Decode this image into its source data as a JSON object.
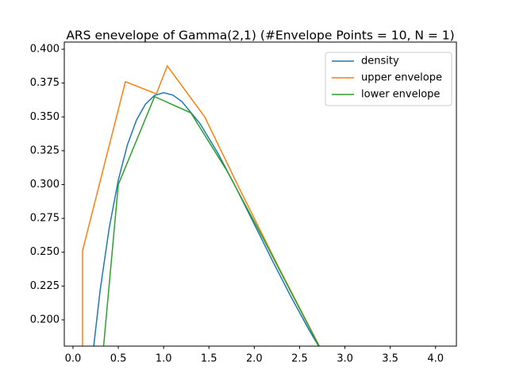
{
  "chart_data": {
    "type": "line",
    "title": "ARS enevelope of Gamma(2,1) (#Envelope Points = 10, N = 1)",
    "xlim": [
      -0.096,
      4.23
    ],
    "ylim": [
      0.1806,
      0.4053
    ],
    "xticks": [
      {
        "value": 0,
        "label": "0.0"
      },
      {
        "value": 0.5,
        "label": "0.5"
      },
      {
        "value": 1,
        "label": "1.0"
      },
      {
        "value": 1.5,
        "label": "1.5"
      },
      {
        "value": 2,
        "label": "2.0"
      },
      {
        "value": 2.5,
        "label": "2.5"
      },
      {
        "value": 3,
        "label": "3.0"
      },
      {
        "value": 3.5,
        "label": "3.5"
      },
      {
        "value": 4,
        "label": "4.0"
      }
    ],
    "yticks": [
      {
        "value": 0.2,
        "label": "0.200"
      },
      {
        "value": 0.225,
        "label": "0.225"
      },
      {
        "value": 0.25,
        "label": "0.250"
      },
      {
        "value": 0.275,
        "label": "0.275"
      },
      {
        "value": 0.3,
        "label": "0.300"
      },
      {
        "value": 0.325,
        "label": "0.325"
      },
      {
        "value": 0.35,
        "label": "0.350"
      },
      {
        "value": 0.375,
        "label": "0.375"
      },
      {
        "value": 0.4,
        "label": "0.400"
      }
    ],
    "legend": "upper right",
    "series": [
      {
        "name": "density",
        "color": "#1f77b4",
        "x": [
          0.2,
          0.3,
          0.4,
          0.5,
          0.6,
          0.7,
          0.8,
          0.9,
          1.0,
          1.1,
          1.2,
          1.4,
          1.6,
          1.8,
          2.0,
          2.2,
          2.4,
          2.6,
          2.8
        ],
        "values": [
          0.1637,
          0.2222,
          0.2681,
          0.3033,
          0.3293,
          0.3476,
          0.3595,
          0.3659,
          0.3679,
          0.3662,
          0.3614,
          0.3452,
          0.323,
          0.2975,
          0.2707,
          0.2438,
          0.2177,
          0.1931,
          0.1703
        ]
      },
      {
        "name": "upper envelope",
        "color": "#ff7f0e",
        "x": [
          0.105,
          0.105,
          0.578,
          0.92,
          1.04,
          1.453,
          1.847,
          2.276,
          2.8
        ],
        "values": [
          0.15,
          0.251,
          0.376,
          0.367,
          0.3877,
          0.35,
          0.2955,
          0.238,
          0.17
        ]
      },
      {
        "name": "lower envelope",
        "color": "#2ca02c",
        "x": [
          0.33,
          0.5,
          0.9,
          1.3,
          1.7,
          2.1,
          2.75
        ],
        "values": [
          0.175,
          0.3,
          0.365,
          0.353,
          0.31,
          0.26,
          0.176
        ]
      }
    ]
  }
}
